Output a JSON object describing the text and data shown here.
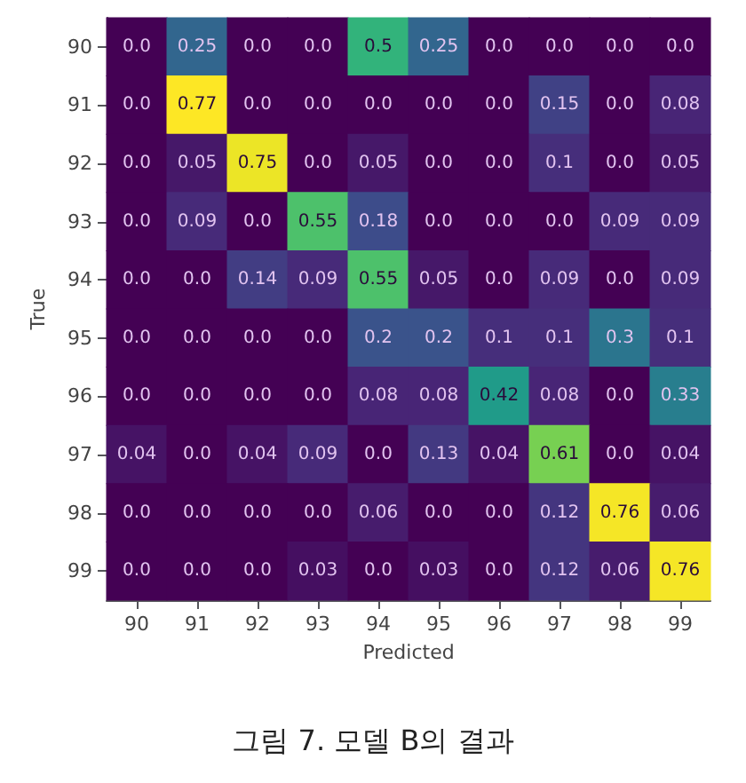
{
  "chart_data": {
    "type": "heatmap",
    "xlabel": "Predicted",
    "ylabel": "True",
    "annotations": [
      "그림 7. 모델 B의 결과"
    ],
    "categories": [
      "90",
      "91",
      "92",
      "93",
      "94",
      "95",
      "96",
      "97",
      "98",
      "99"
    ],
    "y_categories": [
      "90",
      "91",
      "92",
      "93",
      "94",
      "95",
      "96",
      "97",
      "98",
      "99"
    ],
    "cells": [
      [
        0,
        0.25,
        0,
        0,
        0.5,
        0.25,
        0,
        0,
        0,
        0
      ],
      [
        0,
        0.77,
        0,
        0,
        0,
        0,
        0,
        0.15,
        0,
        0.08
      ],
      [
        0,
        0.05,
        0.75,
        0,
        0.05,
        0,
        0,
        0.1,
        0,
        0.05
      ],
      [
        0,
        0.09,
        0,
        0.55,
        0.18,
        0,
        0,
        0,
        0.09,
        0.09
      ],
      [
        0,
        0,
        0.14,
        0.09,
        0.55,
        0.05,
        0,
        0.09,
        0,
        0.09
      ],
      [
        0,
        0,
        0,
        0,
        0.2,
        0.2,
        0.1,
        0.1,
        0.3,
        0.1
      ],
      [
        0,
        0,
        0,
        0,
        0.08,
        0.08,
        0.42,
        0.08,
        0,
        0.33
      ],
      [
        0.04,
        0,
        0.04,
        0.09,
        0,
        0.13,
        0.04,
        0.61,
        0,
        0.04
      ],
      [
        0,
        0,
        0,
        0,
        0.06,
        0,
        0,
        0.12,
        0.76,
        0.06
      ],
      [
        0,
        0,
        0,
        0.03,
        0,
        0.03,
        0,
        0.12,
        0.06,
        0.76
      ]
    ],
    "cell_labels": [
      [
        "0.0",
        "0.25",
        "0.0",
        "0.0",
        "0.5",
        "0.25",
        "0.0",
        "0.0",
        "0.0",
        "0.0"
      ],
      [
        "0.0",
        "0.77",
        "0.0",
        "0.0",
        "0.0",
        "0.0",
        "0.0",
        "0.15",
        "0.0",
        "0.08"
      ],
      [
        "0.0",
        "0.05",
        "0.75",
        "0.0",
        "0.05",
        "0.0",
        "0.0",
        "0.1",
        "0.0",
        "0.05"
      ],
      [
        "0.0",
        "0.09",
        "0.0",
        "0.55",
        "0.18",
        "0.0",
        "0.0",
        "0.0",
        "0.09",
        "0.09"
      ],
      [
        "0.0",
        "0.0",
        "0.14",
        "0.09",
        "0.55",
        "0.05",
        "0.0",
        "0.09",
        "0.0",
        "0.09"
      ],
      [
        "0.0",
        "0.0",
        "0.0",
        "0.0",
        "0.2",
        "0.2",
        "0.1",
        "0.1",
        "0.3",
        "0.1"
      ],
      [
        "0.0",
        "0.0",
        "0.0",
        "0.0",
        "0.08",
        "0.08",
        "0.42",
        "0.08",
        "0.0",
        "0.33"
      ],
      [
        "0.04",
        "0.0",
        "0.04",
        "0.09",
        "0.0",
        "0.13",
        "0.04",
        "0.61",
        "0.0",
        "0.04"
      ],
      [
        "0.0",
        "0.0",
        "0.0",
        "0.0",
        "0.06",
        "0.0",
        "0.0",
        "0.12",
        "0.76",
        "0.06"
      ],
      [
        "0.0",
        "0.0",
        "0.0",
        "0.03",
        "0.0",
        "0.03",
        "0.0",
        "0.12",
        "0.06",
        "0.76"
      ]
    ]
  }
}
